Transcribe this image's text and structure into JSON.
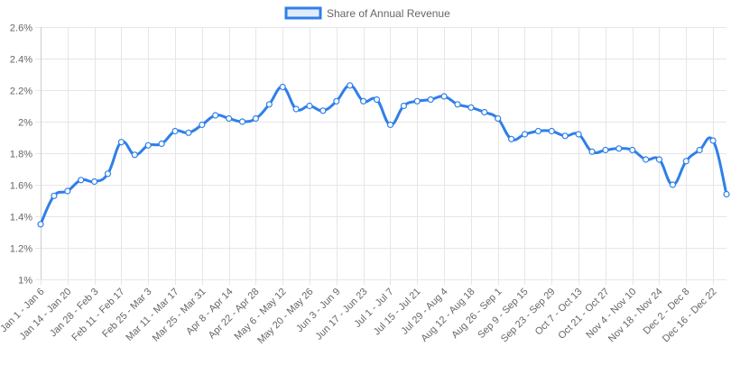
{
  "chart_data": {
    "type": "line",
    "legend": {
      "label": "Share of Annual Revenue",
      "position": "top-center"
    },
    "colors": {
      "line": "#2f7fe9",
      "grid": "#e6e6e6",
      "text": "#666666"
    },
    "yaxis": {
      "min": 1.0,
      "max": 2.6,
      "step": 0.2,
      "tick_labels": [
        "1%",
        "1.2%",
        "1.4%",
        "1.6%",
        "1.8%",
        "2%",
        "2.2%",
        "2.4%",
        "2.6%"
      ]
    },
    "grid": true,
    "x_tick_labels": [
      "Jan 1 - Jan 6",
      "Jan 14 - Jan 20",
      "Jan 28 - Feb 3",
      "Feb 11 - Feb 17",
      "Feb 25 - Mar 3",
      "Mar 11 - Mar 17",
      "Mar 25 - Mar 31",
      "Apr 8 - Apr 14",
      "Apr 22 - Apr 28",
      "May 6 - May 12",
      "May 20 - May 26",
      "Jun 3 - Jun 9",
      "Jun 17 - Jun 23",
      "Jul 1 - Jul 7",
      "Jul 15 - Jul 21",
      "Jul 29 - Aug 4",
      "Aug 12 - Aug 18",
      "Aug 26 - Sep 1",
      "Sep 9 - Sep 15",
      "Sep 23 - Sep 29",
      "Oct 7 - Oct 13",
      "Oct 21 - Oct 27",
      "Nov 4 - Nov 10",
      "Nov 18 - Nov 24",
      "Dec 2 - Dec 8",
      "Dec 16 - Dec 22"
    ],
    "series": [
      {
        "name": "Share of Annual Revenue",
        "values": [
          1.35,
          1.53,
          1.56,
          1.63,
          1.62,
          1.67,
          1.87,
          1.79,
          1.85,
          1.86,
          1.94,
          1.93,
          1.98,
          2.04,
          2.02,
          2.0,
          2.02,
          2.11,
          2.22,
          2.08,
          2.1,
          2.07,
          2.13,
          2.23,
          2.13,
          2.14,
          1.98,
          2.1,
          2.13,
          2.14,
          2.16,
          2.11,
          2.09,
          2.06,
          2.02,
          1.89,
          1.92,
          1.94,
          1.94,
          1.91,
          1.92,
          1.81,
          1.82,
          1.83,
          1.82,
          1.76,
          1.76,
          1.6,
          1.75,
          1.82,
          1.88,
          1.54
        ]
      }
    ]
  }
}
